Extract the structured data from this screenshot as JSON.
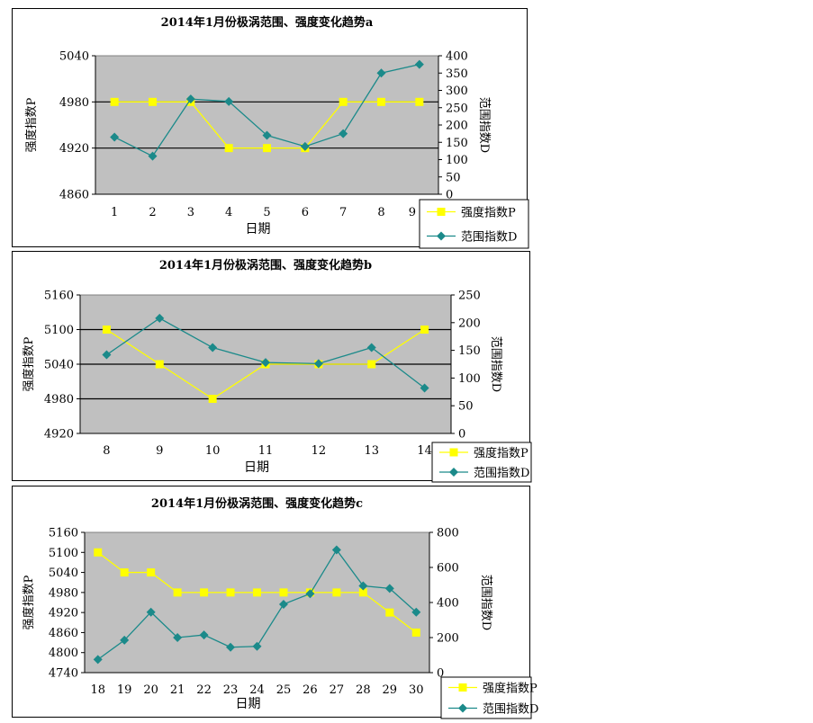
{
  "colors": {
    "intensity": "#ffff00",
    "range": "#1b8a8a",
    "plot_bg": "#c0c0c0",
    "grid": "#000000"
  },
  "chart_data": [
    {
      "type": "line",
      "title": "2014年1月份极涡范围、强度变化趋势a",
      "xlabel": "日期",
      "ylabel_left": "强度指数P",
      "ylabel_right": "范围指数D",
      "categories": [
        "1",
        "2",
        "3",
        "4",
        "5",
        "6",
        "7",
        "8",
        "9"
      ],
      "y_left": {
        "lim": [
          4860,
          5040
        ],
        "ticks": [
          4860,
          4920,
          4980,
          5040
        ],
        "grid": true
      },
      "y_right": {
        "lim": [
          0,
          400
        ],
        "ticks": [
          0,
          50,
          100,
          150,
          200,
          250,
          300,
          350,
          400
        ]
      },
      "series": [
        {
          "name": "强度指数P",
          "axis": "left",
          "marker": "square",
          "color": "#ffff00",
          "values": [
            4980,
            4980,
            4980,
            4920,
            4920,
            4920,
            4980,
            4980,
            4980
          ]
        },
        {
          "name": "范围指数D",
          "axis": "right",
          "marker": "diamond",
          "color": "#1b8a8a",
          "values": [
            165,
            110,
            275,
            268,
            170,
            138,
            175,
            350,
            375
          ]
        }
      ],
      "legend": "bottom-right"
    },
    {
      "type": "line",
      "title": "2014年1月份极涡范围、强度变化趋势b",
      "xlabel": "日期",
      "ylabel_left": "强度指数P",
      "ylabel_right": "范围指数D",
      "categories": [
        "8",
        "9",
        "10",
        "11",
        "12",
        "13",
        "14"
      ],
      "y_left": {
        "lim": [
          4920,
          5160
        ],
        "ticks": [
          4920,
          4980,
          5040,
          5100,
          5160
        ],
        "grid": true
      },
      "y_right": {
        "lim": [
          0,
          250
        ],
        "ticks": [
          0,
          50,
          100,
          150,
          200,
          250
        ]
      },
      "series": [
        {
          "name": "强度指数P",
          "axis": "left",
          "marker": "square",
          "color": "#ffff00",
          "values": [
            5100,
            5040,
            4980,
            5040,
            5040,
            5040,
            5100
          ]
        },
        {
          "name": "范围指数D",
          "axis": "right",
          "marker": "diamond",
          "color": "#1b8a8a",
          "values": [
            142,
            208,
            155,
            128,
            126,
            155,
            82
          ]
        }
      ],
      "legend": "bottom-right"
    },
    {
      "type": "line",
      "title": "2014年1月份极涡范围、强度变化趋势c",
      "xlabel": "日期",
      "ylabel_left": "强度指数P",
      "ylabel_right": "范围指数D",
      "categories": [
        "18",
        "19",
        "20",
        "21",
        "22",
        "23",
        "24",
        "25",
        "26",
        "27",
        "28",
        "29",
        "30"
      ],
      "y_left": {
        "lim": [
          4740,
          5160
        ],
        "ticks": [
          4740,
          4800,
          4860,
          4920,
          4980,
          5040,
          5100,
          5160
        ],
        "grid": false
      },
      "y_right": {
        "lim": [
          0,
          800
        ],
        "ticks": [
          0,
          200,
          400,
          600,
          800
        ]
      },
      "series": [
        {
          "name": "强度指数P",
          "axis": "left",
          "marker": "square",
          "color": "#ffff00",
          "values": [
            5100,
            5040,
            5040,
            4980,
            4980,
            4980,
            4980,
            4980,
            4980,
            4980,
            4980,
            4920,
            4860
          ]
        },
        {
          "name": "范围指数D",
          "axis": "right",
          "marker": "diamond",
          "color": "#1b8a8a",
          "values": [
            75,
            185,
            345,
            200,
            215,
            145,
            150,
            390,
            450,
            700,
            495,
            480,
            345
          ]
        }
      ],
      "legend": "bottom-right"
    }
  ]
}
